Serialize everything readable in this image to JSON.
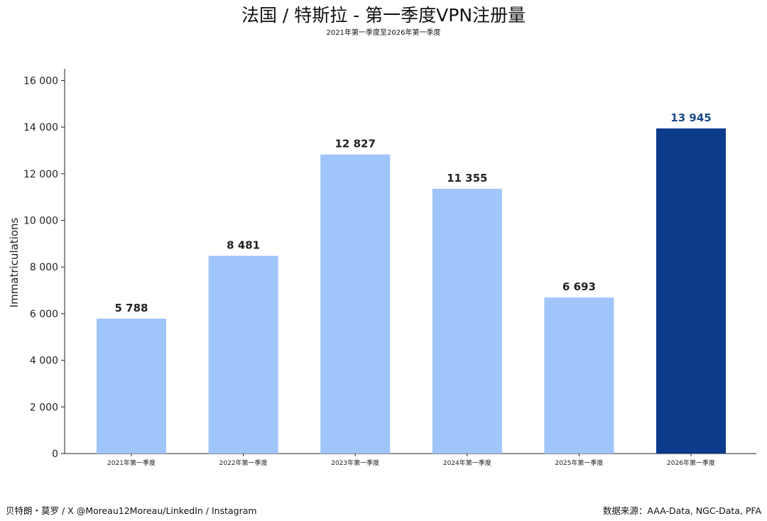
{
  "header": {
    "title": "法国 / 特斯拉 - 第一季度VPN注册量",
    "subtitle": "2021年第一季度至2026年第一季度"
  },
  "footer": {
    "left": "贝特朗・莫罗 / X @Moreau12Moreau/LinkedIn / Instagram",
    "right": "数据来源：AAA-Data, NGC-Data, PFA"
  },
  "chart_data": {
    "type": "bar",
    "title": "法国 / 特斯拉 - 第一季度VPN注册量",
    "subtitle": "2021年第一季度至2026年第一季度",
    "xlabel": "",
    "ylabel": "Immatriculations",
    "categories": [
      "2021年第一季度",
      "2022年第一季度",
      "2023年第一季度",
      "2024年第一季度",
      "2025年第一季度",
      "2026年第一季度"
    ],
    "values": [
      5788,
      8481,
      12827,
      11355,
      6693,
      13945
    ],
    "value_labels": [
      "5 788",
      "8 481",
      "12 827",
      "11 355",
      "6 693",
      "13 945"
    ],
    "ylim": [
      0,
      16000
    ],
    "yticks": [
      0,
      2000,
      4000,
      6000,
      8000,
      10000,
      12000,
      14000,
      16000
    ],
    "ytick_labels": [
      "0",
      "2 000",
      "4 000",
      "6 000",
      "8 000",
      "10 000",
      "12 000",
      "14 000",
      "16 000"
    ],
    "grid": false,
    "colors": {
      "default_bar": "#a0c5fa",
      "highlight_bar": "#0d3b8c",
      "default_label": "#222222",
      "highlight_label": "#1a4a8a"
    },
    "highlight_index": 5
  }
}
